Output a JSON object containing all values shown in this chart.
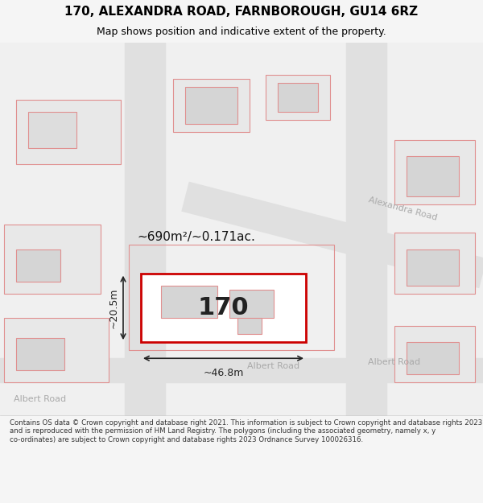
{
  "title": "170, ALEXANDRA ROAD, FARNBOROUGH, GU14 6RZ",
  "subtitle": "Map shows position and indicative extent of the property.",
  "footer": "Contains OS data © Crown copyright and database right 2021. This information is subject to Crown copyright and database rights 2023 and is reproduced with the permission of HM Land Registry. The polygons (including the associated geometry, namely x, y co-ordinates) are subject to Crown copyright and database rights 2023 Ordnance Survey 100026316.",
  "bg_color": "#f5f5f5",
  "map_bg": "#ffffff",
  "road_color": "#e8e8e8",
  "plot_outline_color": "#cc0000",
  "dim_color": "#222222",
  "road_label_color": "#999999",
  "label_170": "170",
  "area_label": "~690m²/~0.171ac.",
  "dim_width": "~46.8m",
  "dim_height": "~20.5m"
}
